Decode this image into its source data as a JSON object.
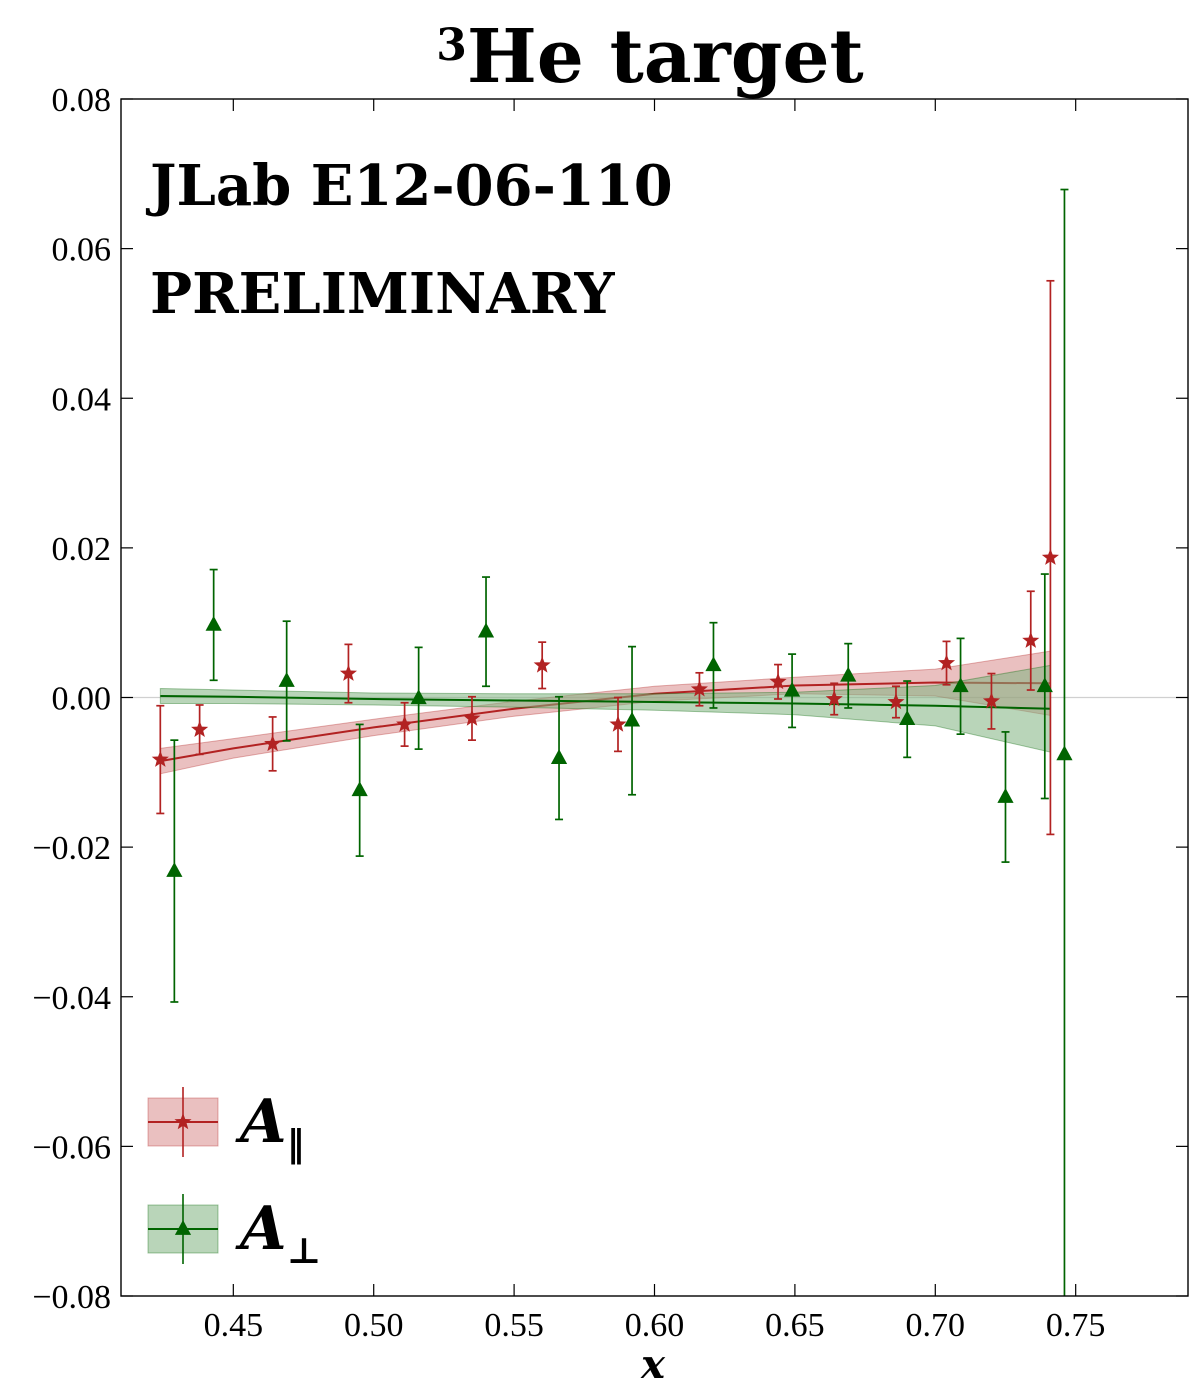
{
  "chart_data": {
    "type": "scatter",
    "title": {
      "sup": "3",
      "main": "He target"
    },
    "annotations": [
      "JLab E12-06-110",
      "PRELIMINARY"
    ],
    "xlabel": "x",
    "ylabel": "",
    "xlim": [
      0.41,
      0.79
    ],
    "ylim": [
      -0.08,
      0.08
    ],
    "x_ticks": [
      0.45,
      0.5,
      0.55,
      0.6,
      0.65,
      0.7,
      0.75
    ],
    "x_tick_labels": [
      "0.45",
      "0.50",
      "0.55",
      "0.60",
      "0.65",
      "0.70",
      "0.75"
    ],
    "y_ticks": [
      -0.08,
      -0.06,
      -0.04,
      -0.02,
      0.0,
      0.02,
      0.04,
      0.06,
      0.08
    ],
    "y_tick_labels": [
      "−0.08",
      "−0.06",
      "−0.04",
      "−0.02",
      "0.00",
      "0.02",
      "0.04",
      "0.06",
      "0.08"
    ],
    "zero_line": true,
    "legend_position": "lower-left",
    "series": [
      {
        "name": "A",
        "name_subscript": "‖",
        "marker": "star",
        "color": "#b22222",
        "band_color": "#d98c8c",
        "points": [
          {
            "x": 0.424,
            "y": -0.0083,
            "err": 0.0072
          },
          {
            "x": 0.438,
            "y": -0.0043,
            "err": 0.0033
          },
          {
            "x": 0.464,
            "y": -0.0062,
            "err": 0.0036
          },
          {
            "x": 0.491,
            "y": 0.0032,
            "err": 0.0039
          },
          {
            "x": 0.511,
            "y": -0.0036,
            "err": 0.0029
          },
          {
            "x": 0.535,
            "y": -0.0028,
            "err": 0.0029
          },
          {
            "x": 0.56,
            "y": 0.0043,
            "err": 0.0031
          },
          {
            "x": 0.587,
            "y": -0.0036,
            "err": 0.0036
          },
          {
            "x": 0.616,
            "y": 0.0011,
            "err": 0.0022
          },
          {
            "x": 0.644,
            "y": 0.0021,
            "err": 0.0023
          },
          {
            "x": 0.664,
            "y": -0.0002,
            "err": 0.0021
          },
          {
            "x": 0.686,
            "y": -0.0006,
            "err": 0.0021
          },
          {
            "x": 0.704,
            "y": 0.0046,
            "err": 0.0029
          },
          {
            "x": 0.72,
            "y": -0.0005,
            "err": 0.0037
          },
          {
            "x": 0.734,
            "y": 0.0076,
            "err": 0.0066
          },
          {
            "x": 0.741,
            "y": 0.0187,
            "err": 0.037
          }
        ],
        "fit": {
          "x": [
            0.424,
            0.45,
            0.5,
            0.55,
            0.6,
            0.65,
            0.7,
            0.741
          ],
          "y": [
            -0.0085,
            -0.0068,
            -0.004,
            -0.0015,
            0.0005,
            0.0016,
            0.002,
            0.0019
          ],
          "band": [
            0.0017,
            0.0013,
            0.0011,
            0.001,
            0.001,
            0.0011,
            0.0018,
            0.0043
          ]
        }
      },
      {
        "name": "A",
        "name_subscript": "⊥",
        "marker": "triangle",
        "color": "#006400",
        "band_color": "#7fb27f",
        "points": [
          {
            "x": 0.429,
            "y": -0.0232,
            "err": 0.0175
          },
          {
            "x": 0.443,
            "y": 0.0097,
            "err": 0.0074
          },
          {
            "x": 0.469,
            "y": 0.0022,
            "err": 0.008
          },
          {
            "x": 0.495,
            "y": -0.0124,
            "err": 0.0088
          },
          {
            "x": 0.516,
            "y": -0.0001,
            "err": 0.0068
          },
          {
            "x": 0.54,
            "y": 0.0088,
            "err": 0.0073
          },
          {
            "x": 0.566,
            "y": -0.0081,
            "err": 0.0082
          },
          {
            "x": 0.592,
            "y": -0.0031,
            "err": 0.0099
          },
          {
            "x": 0.621,
            "y": 0.0043,
            "err": 0.0057
          },
          {
            "x": 0.649,
            "y": 0.0009,
            "err": 0.0049
          },
          {
            "x": 0.669,
            "y": 0.0029,
            "err": 0.0043
          },
          {
            "x": 0.69,
            "y": -0.0029,
            "err": 0.0051
          },
          {
            "x": 0.709,
            "y": 0.0015,
            "err": 0.0064
          },
          {
            "x": 0.725,
            "y": -0.0133,
            "err": 0.0087
          },
          {
            "x": 0.739,
            "y": 0.0015,
            "err": 0.015
          },
          {
            "x": 0.746,
            "y": -0.0076,
            "err": 0.0755
          }
        ],
        "fit": {
          "x": [
            0.424,
            0.45,
            0.5,
            0.55,
            0.6,
            0.65,
            0.7,
            0.741
          ],
          "y": [
            0.0002,
            0.0001,
            -0.0002,
            -0.0004,
            -0.0006,
            -0.0008,
            -0.0011,
            -0.0015
          ],
          "band": [
            0.001,
            0.0009,
            0.0008,
            0.0009,
            0.0011,
            0.0015,
            0.0027,
            0.0058
          ]
        }
      }
    ]
  }
}
